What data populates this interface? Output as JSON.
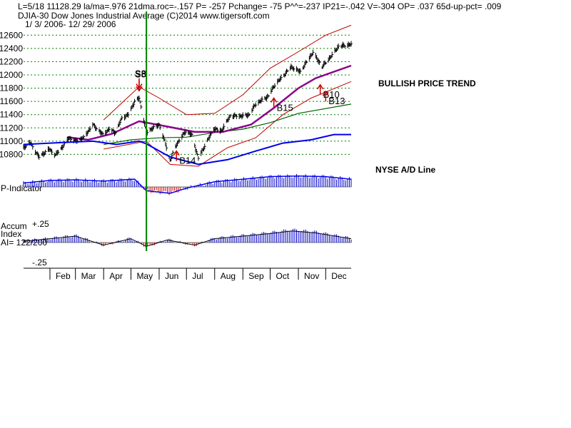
{
  "header": {
    "line1": "L=5/18   11128.29   la/ma=.976  21dma.roc=-.157  P= -257  Pchange= -75  P^^=-237  IP21=-.042  V=-304  OP= .037  65d-up-pct= .009",
    "line2": "DJIA-30   Dow Jones Industrial Average   (C)2014  www.tigersoft.com",
    "line3": "1/ 3/ 2006-  12/ 29/ 2006"
  },
  "labels": {
    "bullish": "BULLISH PRICE TREND",
    "nyse_ad": "NYSE A/D Line",
    "p_indicator": "P-Indicator",
    "accum1": "Accum",
    "accum2": "Index",
    "ai": "AI= 122/200",
    "plus25": "+.25",
    "minus25": "-.25"
  },
  "colors": {
    "price_bars": "#000000",
    "band": "#c00000",
    "ma_short": "#8b008b",
    "ma_long": "#006400",
    "ad_line": "#0000ee",
    "indicator_pos": "#0000cc",
    "indicator_neg": "#cc0000",
    "signal_line": "#008000",
    "gridline": "#008000"
  },
  "chart_data": {
    "type": "line",
    "title": "DJIA-30 Dow Jones Industrial Average",
    "date_range": "1/ 3/ 2006- 12/ 29/ 2006",
    "x_ticks": [
      "Feb",
      "Mar",
      "Apr",
      "May",
      "Jun",
      "Jul",
      "Aug",
      "Sep",
      "Oct",
      "Nov",
      "Dec"
    ],
    "y_ticks": [
      10800,
      11000,
      11200,
      11400,
      11600,
      11800,
      12000,
      12200,
      12400,
      12600
    ],
    "ylim": [
      10600,
      12700
    ],
    "signal_date": "2006-05-18",
    "price_path": [
      [
        "2006-01-03",
        10900
      ],
      [
        "2006-01-10",
        10980
      ],
      [
        "2006-01-20",
        10760
      ],
      [
        "2006-01-31",
        10880
      ],
      [
        "2006-02-07",
        10790
      ],
      [
        "2006-02-15",
        10920
      ],
      [
        "2006-02-22",
        11050
      ],
      [
        "2006-03-01",
        11000
      ],
      [
        "2006-03-10",
        11050
      ],
      [
        "2006-03-20",
        11250
      ],
      [
        "2006-03-31",
        11100
      ],
      [
        "2006-04-07",
        11180
      ],
      [
        "2006-04-14",
        11130
      ],
      [
        "2006-04-21",
        11350
      ],
      [
        "2006-04-28",
        11400
      ],
      [
        "2006-05-05",
        11600
      ],
      [
        "2006-05-10",
        11650
      ],
      [
        "2006-05-18",
        11128
      ],
      [
        "2006-05-25",
        11200
      ],
      [
        "2006-06-01",
        11250
      ],
      [
        "2006-06-08",
        10960
      ],
      [
        "2006-06-13",
        10710
      ],
      [
        "2006-06-20",
        10950
      ],
      [
        "2006-06-30",
        11150
      ],
      [
        "2006-07-07",
        11090
      ],
      [
        "2006-07-14",
        10740
      ],
      [
        "2006-07-20",
        10900
      ],
      [
        "2006-07-31",
        11190
      ],
      [
        "2006-08-08",
        11150
      ],
      [
        "2006-08-18",
        11380
      ],
      [
        "2006-08-31",
        11380
      ],
      [
        "2006-09-08",
        11400
      ],
      [
        "2006-09-15",
        11560
      ],
      [
        "2006-09-29",
        11680
      ],
      [
        "2006-10-06",
        11850
      ],
      [
        "2006-10-13",
        11950
      ],
      [
        "2006-10-24",
        12120
      ],
      [
        "2006-11-03",
        12050
      ],
      [
        "2006-11-17",
        12340
      ],
      [
        "2006-11-27",
        12120
      ],
      [
        "2006-12-08",
        12300
      ],
      [
        "2006-12-15",
        12430
      ],
      [
        "2006-12-29",
        12460
      ]
    ],
    "ad_path": [
      [
        "2006-01-03",
        10950
      ],
      [
        "2006-02-15",
        10980
      ],
      [
        "2006-03-20",
        11000
      ],
      [
        "2006-04-15",
        10950
      ],
      [
        "2006-05-10",
        11000
      ],
      [
        "2006-05-18",
        10960
      ],
      [
        "2006-06-13",
        10760
      ],
      [
        "2006-07-14",
        10650
      ],
      [
        "2006-08-15",
        10720
      ],
      [
        "2006-09-15",
        10850
      ],
      [
        "2006-10-15",
        10970
      ],
      [
        "2006-11-15",
        11020
      ],
      [
        "2006-12-10",
        11100
      ],
      [
        "2006-12-29",
        11100
      ]
    ],
    "ma_short_path": [
      [
        "2006-02-20",
        11060
      ],
      [
        "2006-03-15",
        11020
      ],
      [
        "2006-04-10",
        11110
      ],
      [
        "2006-05-10",
        11300
      ],
      [
        "2006-06-10",
        11220
      ],
      [
        "2006-07-10",
        11140
      ],
      [
        "2006-08-10",
        11140
      ],
      [
        "2006-09-10",
        11250
      ],
      [
        "2006-10-05",
        11500
      ],
      [
        "2006-11-01",
        11800
      ],
      [
        "2006-11-20",
        11950
      ],
      [
        "2006-12-29",
        12140
      ]
    ],
    "ma_long_path": [
      [
        "2006-04-01",
        10950
      ],
      [
        "2006-05-01",
        11020
      ],
      [
        "2006-06-01",
        11050
      ],
      [
        "2006-07-01",
        11060
      ],
      [
        "2006-08-01",
        11130
      ],
      [
        "2006-09-01",
        11180
      ],
      [
        "2006-10-01",
        11280
      ],
      [
        "2006-11-01",
        11420
      ],
      [
        "2006-12-29",
        11560
      ]
    ],
    "band_upper": [
      [
        "2006-04-01",
        11320
      ],
      [
        "2006-05-10",
        11820
      ],
      [
        "2006-06-01",
        11650
      ],
      [
        "2006-07-01",
        11400
      ],
      [
        "2006-08-01",
        11420
      ],
      [
        "2006-09-01",
        11700
      ],
      [
        "2006-10-01",
        12100
      ],
      [
        "2006-11-01",
        12350
      ],
      [
        "2006-12-01",
        12600
      ],
      [
        "2006-12-29",
        12750
      ]
    ],
    "band_lower": [
      [
        "2006-04-01",
        10880
      ],
      [
        "2006-05-18",
        11000
      ],
      [
        "2006-06-13",
        10650
      ],
      [
        "2006-07-14",
        10620
      ],
      [
        "2006-08-15",
        10900
      ],
      [
        "2006-09-15",
        11050
      ],
      [
        "2006-10-15",
        11400
      ],
      [
        "2006-11-15",
        11650
      ],
      [
        "2006-12-29",
        11900
      ]
    ],
    "signals": [
      {
        "label": "S8",
        "date": "2006-05-10",
        "price": 11800
      },
      {
        "label": "S8",
        "date": "2006-05-10",
        "price": 11760
      },
      {
        "label": "B14",
        "date": "2006-06-20",
        "price": 10700
      },
      {
        "label": "B15",
        "date": "2006-10-05",
        "price": 11500
      },
      {
        "label": "B10",
        "date": "2006-11-25",
        "price": 11700
      },
      {
        "label": "B13",
        "date": "2006-12-01",
        "price": 11600
      }
    ],
    "p_indicator_path": [
      [
        "2006-01-03",
        0.3
      ],
      [
        "2006-02-01",
        0.5
      ],
      [
        "2006-03-01",
        0.55
      ],
      [
        "2006-04-01",
        0.45
      ],
      [
        "2006-05-05",
        0.6
      ],
      [
        "2006-05-18",
        -0.3
      ],
      [
        "2006-06-13",
        -0.5
      ],
      [
        "2006-07-01",
        -0.1
      ],
      [
        "2006-08-01",
        0.4
      ],
      [
        "2006-09-01",
        0.6
      ],
      [
        "2006-10-01",
        0.8
      ],
      [
        "2006-11-01",
        0.85
      ],
      [
        "2006-12-01",
        0.8
      ],
      [
        "2006-12-29",
        0.6
      ]
    ],
    "accum_path": [
      [
        "2006-01-03",
        0.02
      ],
      [
        "2006-02-01",
        0.06
      ],
      [
        "2006-03-01",
        0.1
      ],
      [
        "2006-04-01",
        -0.04
      ],
      [
        "2006-05-01",
        0.06
      ],
      [
        "2006-05-18",
        -0.06
      ],
      [
        "2006-06-10",
        0.04
      ],
      [
        "2006-07-10",
        -0.04
      ],
      [
        "2006-08-01",
        0.06
      ],
      [
        "2006-09-01",
        0.1
      ],
      [
        "2006-10-01",
        0.14
      ],
      [
        "2006-10-25",
        0.18
      ],
      [
        "2006-11-20",
        0.15
      ],
      [
        "2006-12-29",
        0.06
      ]
    ],
    "accum_ylim": [
      -0.25,
      0.25
    ]
  }
}
